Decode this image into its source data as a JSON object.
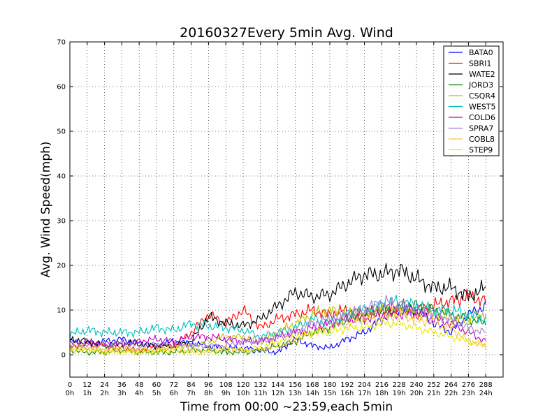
{
  "chart_data": {
    "type": "line",
    "title": "20160327Every 5min Avg. Wind",
    "xlabel": "Time from 00:00 ~23:59,each 5min",
    "ylabel": "Avg. Wind Speed(mph)",
    "xlim": [
      0,
      300
    ],
    "ylim": [
      -5,
      70
    ],
    "grid": true,
    "legend_position": "top-right",
    "x_ticks": [
      0,
      12,
      24,
      36,
      48,
      60,
      72,
      84,
      96,
      108,
      120,
      132,
      144,
      156,
      168,
      180,
      192,
      204,
      216,
      228,
      240,
      252,
      264,
      276,
      288
    ],
    "x_tick_labels_hours": [
      "0h",
      "1h",
      "2h",
      "3h",
      "4h",
      "5h",
      "6h",
      "7h",
      "8h",
      "9h",
      "10h",
      "11h",
      "12h",
      "13h",
      "14h",
      "15h",
      "16h",
      "17h",
      "18h",
      "19h",
      "20h",
      "21h",
      "22h",
      "23h",
      "24h"
    ],
    "y_ticks": [
      0,
      10,
      20,
      30,
      40,
      50,
      60,
      70
    ],
    "sample_x": [
      0,
      12,
      24,
      36,
      48,
      60,
      72,
      84,
      96,
      108,
      120,
      132,
      144,
      156,
      168,
      180,
      192,
      204,
      216,
      228,
      240,
      252,
      264,
      276,
      288
    ],
    "series": [
      {
        "name": "BATA0",
        "color": "#0000ff",
        "values": [
          3,
          2.5,
          3,
          3.5,
          2.5,
          2,
          3,
          2.5,
          2,
          1.5,
          1.5,
          1,
          0.5,
          3.5,
          2,
          1.5,
          3.5,
          5,
          8,
          10,
          10,
          7,
          5,
          9,
          11
        ]
      },
      {
        "name": "SBRI1",
        "color": "#ff0000",
        "values": [
          1.5,
          2.5,
          2,
          1.5,
          1,
          2,
          2,
          5,
          9,
          7,
          10,
          6,
          8,
          9,
          10,
          9,
          10,
          9,
          10,
          11,
          10,
          11,
          12,
          13,
          12
        ]
      },
      {
        "name": "WATE2",
        "color": "#000000",
        "values": [
          3.5,
          3,
          2,
          2.5,
          2.5,
          2,
          2,
          3,
          8.5,
          7,
          6.5,
          8,
          11,
          14,
          13,
          13.5,
          16,
          18,
          18,
          19,
          17,
          15,
          15,
          13,
          15
        ]
      },
      {
        "name": "JORD3",
        "color": "#008000",
        "values": [
          1,
          0.5,
          0.5,
          1,
          0.5,
          0.5,
          0.5,
          1,
          1,
          0.5,
          0.5,
          1,
          2,
          3,
          5,
          6,
          8,
          9,
          10,
          10,
          11,
          10,
          9,
          8,
          7
        ]
      },
      {
        "name": "CSQR4",
        "color": "#bfbf00",
        "values": [
          2,
          1.5,
          1,
          1.5,
          1,
          1,
          2,
          2,
          3,
          4,
          4,
          3,
          5,
          7,
          9,
          10,
          9,
          9,
          10,
          10,
          9,
          9,
          8,
          8,
          9
        ]
      },
      {
        "name": "WEST5",
        "color": "#00bfbf",
        "values": [
          4.5,
          5.5,
          5,
          5,
          5,
          6,
          5.5,
          7,
          6.5,
          6,
          5.5,
          4,
          5,
          6,
          8,
          7,
          9,
          10,
          11,
          12,
          11,
          10,
          10,
          9,
          8
        ]
      },
      {
        "name": "COLD6",
        "color": "#bf00bf",
        "values": [
          2.5,
          3,
          2.5,
          2.5,
          3,
          3.5,
          3,
          4,
          4,
          3.5,
          3,
          3,
          4,
          5,
          6,
          7,
          8,
          8,
          9,
          9,
          9,
          8,
          7,
          5,
          3
        ]
      },
      {
        "name": "SPRA7",
        "color": "#a07ad8",
        "values": [
          2,
          2,
          2,
          2.5,
          2,
          2.5,
          2,
          2,
          2,
          2,
          3,
          3,
          4,
          5,
          7,
          8,
          9,
          10,
          12,
          11,
          10,
          9,
          8,
          6,
          5
        ]
      },
      {
        "name": "COBL8",
        "color": "#ffbf40",
        "values": [
          1,
          1.5,
          1,
          1,
          1,
          1,
          1.5,
          1,
          1,
          1.5,
          1,
          1,
          2,
          3,
          5,
          6,
          7,
          8,
          8,
          9,
          8,
          7,
          6,
          3,
          2
        ]
      },
      {
        "name": "STEP9",
        "color": "#e8e800",
        "values": [
          1.5,
          1,
          0.5,
          0.5,
          0.5,
          0.5,
          1,
          0.5,
          0.5,
          1,
          1,
          1.5,
          3,
          4,
          5,
          5,
          6,
          6,
          7,
          7,
          6,
          5,
          4,
          3,
          2
        ]
      }
    ]
  }
}
